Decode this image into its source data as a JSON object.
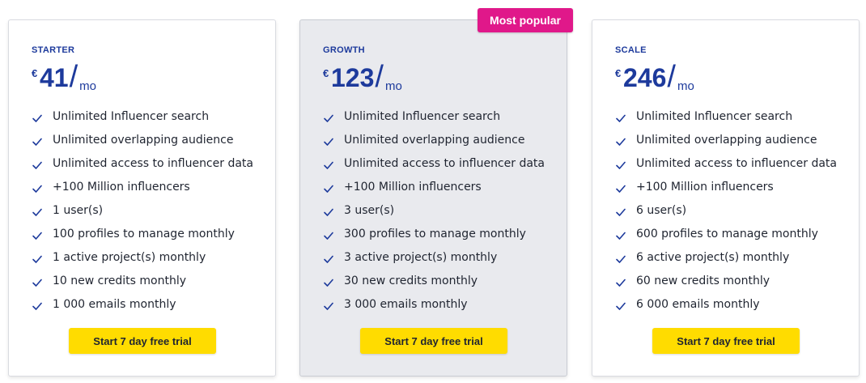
{
  "colors": {
    "accent": "#1d3a9c",
    "cta": "#ffdc00",
    "badge": "#e0188a",
    "popular_bg": "#e9eaee"
  },
  "badge": "Most popular",
  "plans": [
    {
      "name": "STARTER",
      "currency": "€",
      "amount": "41",
      "slash": "/",
      "unit": "mo",
      "features": [
        "Unlimited Influencer search",
        "Unlimited overlapping audience",
        "Unlimited access to influencer data",
        "+100 Million influencers",
        "1 user(s)",
        "100 profiles to manage monthly",
        "1 active project(s) monthly",
        "10 new credits monthly",
        "1 000 emails monthly"
      ],
      "cta": "Start 7 day free trial"
    },
    {
      "name": "GROWTH",
      "currency": "€",
      "amount": "123",
      "slash": "/",
      "unit": "mo",
      "features": [
        "Unlimited Influencer search",
        "Unlimited overlapping audience",
        "Unlimited access to influencer data",
        "+100 Million influencers",
        "3 user(s)",
        "300 profiles to manage monthly",
        "3 active project(s) monthly",
        "30 new credits monthly",
        "3 000 emails monthly"
      ],
      "cta": "Start 7 day free trial"
    },
    {
      "name": "SCALE",
      "currency": "€",
      "amount": "246",
      "slash": "/",
      "unit": "mo",
      "features": [
        "Unlimited Influencer search",
        "Unlimited overlapping audience",
        "Unlimited access to influencer data",
        "+100 Million influencers",
        "6 user(s)",
        "600 profiles to manage monthly",
        "6 active project(s) monthly",
        "60 new credits monthly",
        "6 000 emails monthly"
      ],
      "cta": "Start 7 day free trial"
    }
  ]
}
